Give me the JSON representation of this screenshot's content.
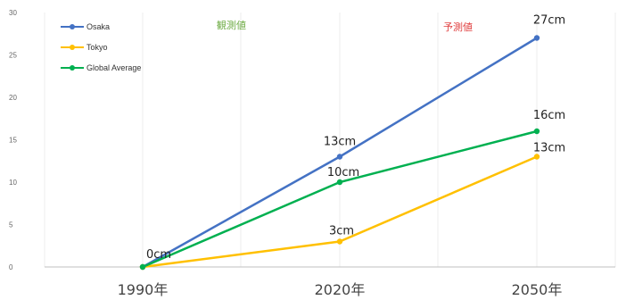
{
  "chart_data": {
    "type": "line",
    "categories": [
      "1990年",
      "2020年",
      "2050年"
    ],
    "series": [
      {
        "name": "Osaka",
        "color": "#4472c4",
        "values": [
          0,
          13,
          27
        ],
        "labels": [
          "",
          "13cm",
          "27cm"
        ]
      },
      {
        "name": "Tokyo",
        "color": "#ffc000",
        "values": [
          0,
          3,
          13
        ],
        "labels": [
          "",
          "3cm",
          "13cm"
        ]
      },
      {
        "name": "Global Average",
        "color": "#00b050",
        "values": [
          0,
          10,
          16
        ],
        "labels": [
          "0cm",
          "10cm",
          "16cm"
        ]
      }
    ],
    "ylim": [
      0,
      30
    ],
    "yticks": [
      0,
      5,
      10,
      15,
      20,
      25,
      30
    ],
    "grid": "vertical",
    "legend": "top-left",
    "annotations": [
      {
        "text": "観測値",
        "color": "#70ad47"
      },
      {
        "text": "予測値",
        "color": "#e04040"
      }
    ]
  }
}
